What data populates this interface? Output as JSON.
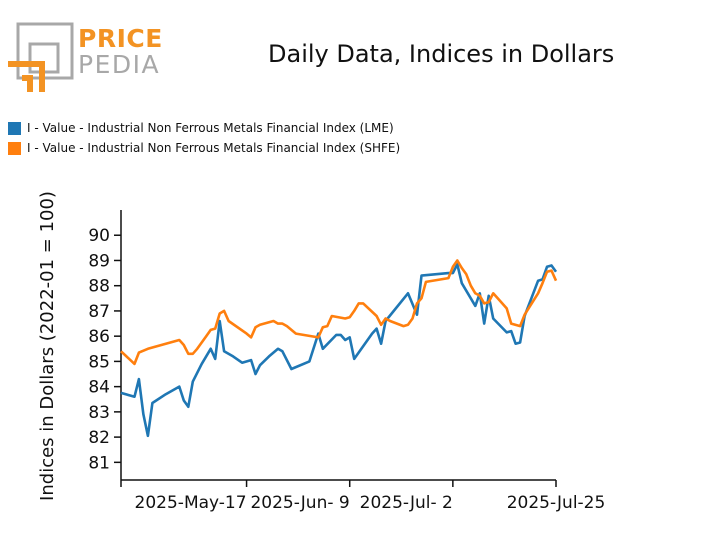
{
  "logo": {
    "word1": "PRICE",
    "word2": "PEDIA",
    "colors": {
      "orange": "#f39323",
      "gray": "#a8a8a8"
    }
  },
  "chart_data": {
    "type": "line",
    "title": "Daily Data, Indices in Dollars",
    "xlabel": "",
    "ylabel": "Indices in Dollars (2022-01 = 100)",
    "ylim": [
      80.3,
      91.0
    ],
    "yticks": [
      81,
      82,
      83,
      84,
      85,
      86,
      87,
      88,
      89,
      90
    ],
    "x_tick_dates": [
      "2025-05-17",
      "2025-06-09",
      "2025-07-02",
      "2025-07-25"
    ],
    "x_tick_labels": [
      "2025-May-17",
      "2025-Jun- 9",
      "2025-Jul- 2",
      "2025-Jul-25"
    ],
    "x_range": [
      "2025-04-19",
      "2025-07-25"
    ],
    "grid": false,
    "legend_position": "top-left",
    "series": [
      {
        "name": "I - Value - Industrial Non Ferrous Metals Financial Index (LME)",
        "color": "#1f77b4",
        "points": [
          [
            "2025-04-19",
            83.75
          ],
          [
            "2025-04-22",
            83.6
          ],
          [
            "2025-04-23",
            84.3
          ],
          [
            "2025-04-24",
            82.9
          ],
          [
            "2025-04-25",
            82.05
          ],
          [
            "2025-04-26",
            83.35
          ],
          [
            "2025-04-29",
            83.7
          ],
          [
            "2025-05-02",
            84.0
          ],
          [
            "2025-05-03",
            83.45
          ],
          [
            "2025-05-04",
            83.2
          ],
          [
            "2025-05-05",
            84.2
          ],
          [
            "2025-05-07",
            84.9
          ],
          [
            "2025-05-09",
            85.5
          ],
          [
            "2025-05-10",
            85.1
          ],
          [
            "2025-05-11",
            86.6
          ],
          [
            "2025-05-12",
            85.4
          ],
          [
            "2025-05-14",
            85.2
          ],
          [
            "2025-05-16",
            84.95
          ],
          [
            "2025-05-18",
            85.05
          ],
          [
            "2025-05-19",
            84.5
          ],
          [
            "2025-05-20",
            84.85
          ],
          [
            "2025-05-22",
            85.2
          ],
          [
            "2025-05-24",
            85.5
          ],
          [
            "2025-05-25",
            85.4
          ],
          [
            "2025-05-27",
            84.7
          ],
          [
            "2025-05-31",
            85.0
          ],
          [
            "2025-06-02",
            86.1
          ],
          [
            "2025-06-03",
            85.5
          ],
          [
            "2025-06-06",
            86.05
          ],
          [
            "2025-06-07",
            86.05
          ],
          [
            "2025-06-08",
            85.85
          ],
          [
            "2025-06-09",
            85.95
          ],
          [
            "2025-06-10",
            85.1
          ],
          [
            "2025-06-14",
            86.1
          ],
          [
            "2025-06-15",
            86.3
          ],
          [
            "2025-06-16",
            85.7
          ],
          [
            "2025-06-17",
            86.6
          ],
          [
            "2025-06-22",
            87.7
          ],
          [
            "2025-06-24",
            86.85
          ],
          [
            "2025-06-25",
            88.4
          ],
          [
            "2025-07-01",
            88.5
          ],
          [
            "2025-07-02",
            88.5
          ],
          [
            "2025-07-03",
            88.85
          ],
          [
            "2025-07-04",
            88.1
          ],
          [
            "2025-07-07",
            87.2
          ],
          [
            "2025-07-08",
            87.7
          ],
          [
            "2025-07-09",
            86.5
          ],
          [
            "2025-07-10",
            87.6
          ],
          [
            "2025-07-11",
            86.7
          ],
          [
            "2025-07-14",
            86.15
          ],
          [
            "2025-07-15",
            86.2
          ],
          [
            "2025-07-16",
            85.7
          ],
          [
            "2025-07-17",
            85.75
          ],
          [
            "2025-07-18",
            86.8
          ],
          [
            "2025-07-21",
            88.2
          ],
          [
            "2025-07-22",
            88.25
          ],
          [
            "2025-07-23",
            88.75
          ],
          [
            "2025-07-24",
            88.8
          ],
          [
            "2025-07-25",
            88.55
          ]
        ]
      },
      {
        "name": "I - Value - Industrial Non Ferrous Metals Financial Index (SHFE)",
        "color": "#ff7f0e",
        "points": [
          [
            "2025-04-19",
            85.4
          ],
          [
            "2025-04-22",
            84.9
          ],
          [
            "2025-04-23",
            85.35
          ],
          [
            "2025-04-25",
            85.5
          ],
          [
            "2025-05-02",
            85.85
          ],
          [
            "2025-05-03",
            85.65
          ],
          [
            "2025-05-04",
            85.3
          ],
          [
            "2025-05-05",
            85.3
          ],
          [
            "2025-05-06",
            85.5
          ],
          [
            "2025-05-08",
            86.0
          ],
          [
            "2025-05-09",
            86.25
          ],
          [
            "2025-05-10",
            86.3
          ],
          [
            "2025-05-11",
            86.9
          ],
          [
            "2025-05-12",
            87.0
          ],
          [
            "2025-05-13",
            86.6
          ],
          [
            "2025-05-17",
            86.1
          ],
          [
            "2025-05-18",
            85.95
          ],
          [
            "2025-05-19",
            86.35
          ],
          [
            "2025-05-20",
            86.45
          ],
          [
            "2025-05-23",
            86.6
          ],
          [
            "2025-05-24",
            86.5
          ],
          [
            "2025-05-25",
            86.5
          ],
          [
            "2025-05-26",
            86.4
          ],
          [
            "2025-05-28",
            86.1
          ],
          [
            "2025-06-02",
            85.95
          ],
          [
            "2025-06-03",
            86.35
          ],
          [
            "2025-06-04",
            86.4
          ],
          [
            "2025-06-05",
            86.8
          ],
          [
            "2025-06-08",
            86.7
          ],
          [
            "2025-06-09",
            86.75
          ],
          [
            "2025-06-10",
            87.0
          ],
          [
            "2025-06-11",
            87.3
          ],
          [
            "2025-06-12",
            87.3
          ],
          [
            "2025-06-15",
            86.8
          ],
          [
            "2025-06-16",
            86.45
          ],
          [
            "2025-06-17",
            86.7
          ],
          [
            "2025-06-18",
            86.6
          ],
          [
            "2025-06-21",
            86.4
          ],
          [
            "2025-06-22",
            86.45
          ],
          [
            "2025-06-23",
            86.7
          ],
          [
            "2025-06-24",
            87.3
          ],
          [
            "2025-06-25",
            87.5
          ],
          [
            "2025-06-26",
            88.15
          ],
          [
            "2025-07-01",
            88.3
          ],
          [
            "2025-07-02",
            88.75
          ],
          [
            "2025-07-03",
            89.0
          ],
          [
            "2025-07-04",
            88.7
          ],
          [
            "2025-07-05",
            88.45
          ],
          [
            "2025-07-06",
            88.0
          ],
          [
            "2025-07-07",
            87.7
          ],
          [
            "2025-07-08",
            87.6
          ],
          [
            "2025-07-09",
            87.3
          ],
          [
            "2025-07-10",
            87.35
          ],
          [
            "2025-07-11",
            87.7
          ],
          [
            "2025-07-12",
            87.5
          ],
          [
            "2025-07-14",
            87.1
          ],
          [
            "2025-07-15",
            86.5
          ],
          [
            "2025-07-17",
            86.4
          ],
          [
            "2025-07-18",
            86.85
          ],
          [
            "2025-07-21",
            87.7
          ],
          [
            "2025-07-22",
            88.1
          ],
          [
            "2025-07-23",
            88.55
          ],
          [
            "2025-07-24",
            88.6
          ],
          [
            "2025-07-25",
            88.2
          ]
        ]
      }
    ]
  }
}
